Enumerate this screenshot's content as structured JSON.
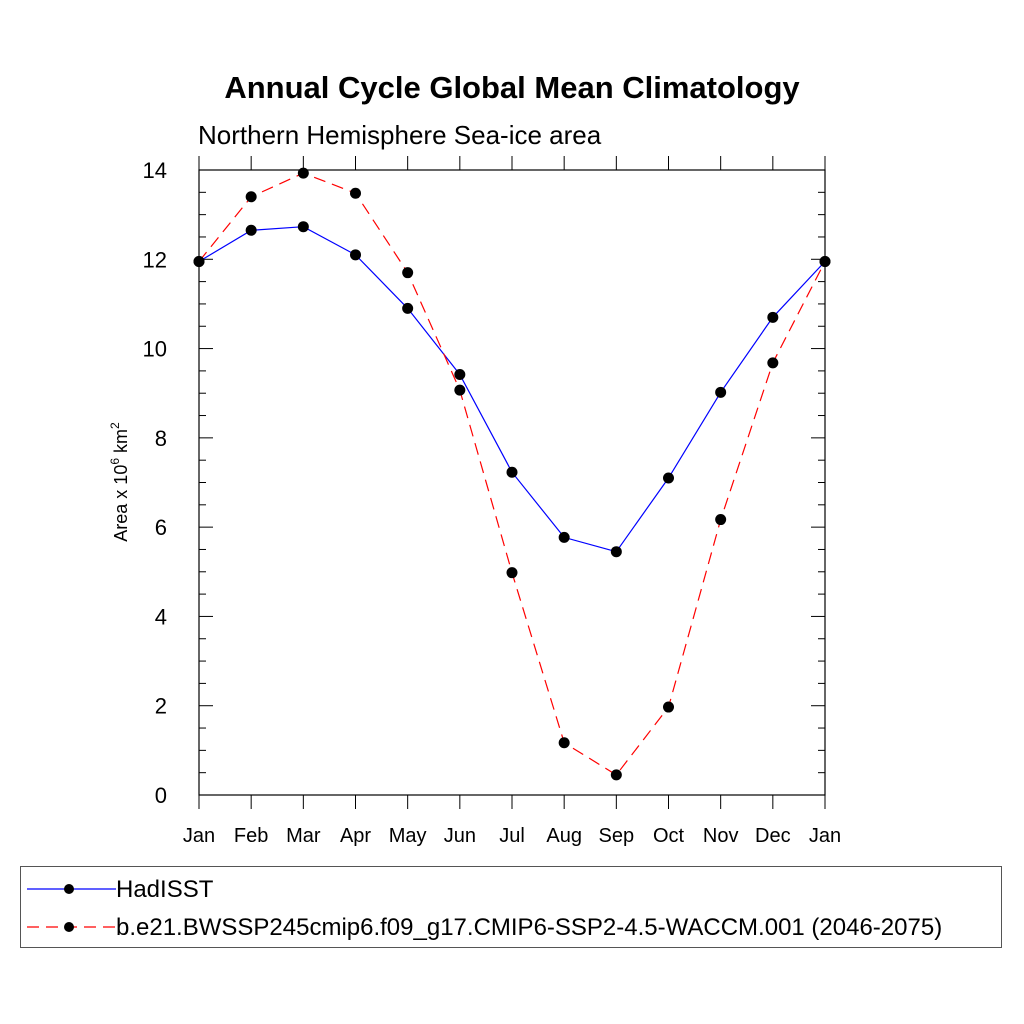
{
  "chart_data": {
    "type": "line",
    "title": "Annual Cycle Global Mean Climatology",
    "subtitle": "Northern Hemisphere Sea-ice area",
    "ylabel_prefix": "Area x 10",
    "ylabel_exp": "6",
    "ylabel_unit": "km",
    "ylabel_unit_exp": "2",
    "xlabel": "",
    "categories": [
      "Jan",
      "Feb",
      "Mar",
      "Apr",
      "May",
      "Jun",
      "Jul",
      "Aug",
      "Sep",
      "Oct",
      "Nov",
      "Dec",
      "Jan"
    ],
    "ylim": [
      0,
      14
    ],
    "yticks": [
      0,
      2,
      4,
      6,
      8,
      10,
      12,
      14
    ],
    "series": [
      {
        "name": "HadISST",
        "color": "#0000ff",
        "dash": "solid",
        "values": [
          11.95,
          12.65,
          12.73,
          12.1,
          10.9,
          9.42,
          7.23,
          5.77,
          5.45,
          7.1,
          9.02,
          10.7,
          11.95
        ]
      },
      {
        "name": "b.e21.BWSSP245cmip6.f09_g17.CMIP6-SSP2-4.5-WACCM.001 (2046-2075)",
        "color": "#ff0000",
        "dash": "dashed",
        "values": [
          11.95,
          13.4,
          13.93,
          13.48,
          11.7,
          9.07,
          4.98,
          1.17,
          0.45,
          1.97,
          6.17,
          9.68,
          11.95
        ]
      }
    ],
    "legend_position": "bottom"
  }
}
